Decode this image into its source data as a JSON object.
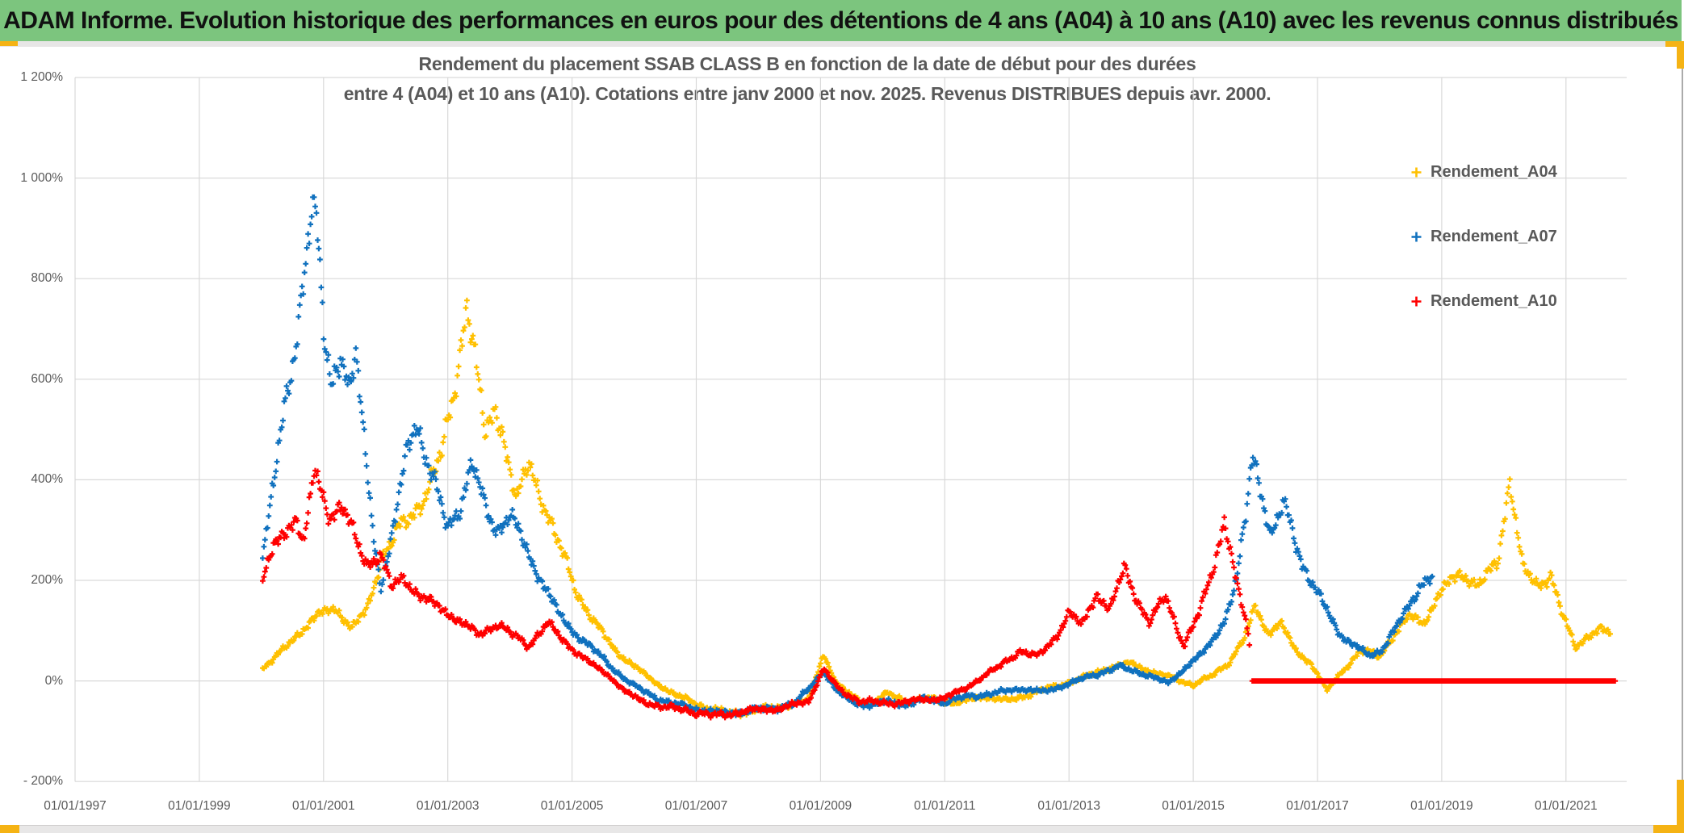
{
  "header": {
    "title": "ADAM Informe. Evolution historique des performances en euros pour des détentions de 4 ans (A04) à 10 ans (A10) avec les revenus connus distribués",
    "bg_color": "#7CC57E"
  },
  "chart": {
    "title_line1": "Rendement du placement SSAB CLASS B en fonction de la date de début pour des durées",
    "title_line2": "entre 4 (A04) et 10 ans (A10). Cotations entre janv 2000 et nov. 2025. Revenus DISTRIBUES depuis avr. 2000.",
    "y_axis": {
      "labels": [
        "1 200%",
        "1 000%",
        "800%",
        "600%",
        "400%",
        "200%",
        "0%",
        "- 200%"
      ],
      "min_pct": -200,
      "max_pct": 1200,
      "step_pct": 200
    },
    "x_axis": {
      "labels": [
        "01/01/1997",
        "01/01/1999",
        "01/01/2001",
        "01/01/2003",
        "01/01/2005",
        "01/01/2007",
        "01/01/2009",
        "01/01/2011",
        "01/01/2013",
        "01/01/2015",
        "01/01/2017",
        "01/01/2019",
        "01/01/2021"
      ],
      "first_year": 1997,
      "step_years": 2
    },
    "legend": [
      {
        "label": "Rendement_A04",
        "color": "#FFC000"
      },
      {
        "label": "Rendement_A07",
        "color": "#1071BE"
      },
      {
        "label": "Rendement_A10",
        "color": "#FF0000"
      }
    ],
    "gridline_color": "#D9D9D9"
  },
  "chart_data": {
    "type": "scatter",
    "marker": "plus",
    "x_unit": "decimal_year_start_date",
    "y_unit": "percent_return",
    "grid": true,
    "legend_position": "inside-top-right",
    "series": [
      {
        "name": "Rendement_A04",
        "color": "#FFC000",
        "vmax": 780,
        "keypoints": [
          [
            2000.02,
            25
          ],
          [
            2000.3,
            55
          ],
          [
            2000.6,
            95
          ],
          [
            2000.9,
            130
          ],
          [
            2001.2,
            145
          ],
          [
            2001.45,
            105
          ],
          [
            2001.7,
            140
          ],
          [
            2001.95,
            250
          ],
          [
            2002.2,
            300
          ],
          [
            2002.45,
            330
          ],
          [
            2002.7,
            390
          ],
          [
            2002.9,
            450
          ],
          [
            2003.1,
            570
          ],
          [
            2003.3,
            755
          ],
          [
            2003.45,
            640
          ],
          [
            2003.6,
            480
          ],
          [
            2003.75,
            545
          ],
          [
            2003.9,
            490
          ],
          [
            2004.1,
            355
          ],
          [
            2004.3,
            430
          ],
          [
            2004.5,
            370
          ],
          [
            2004.7,
            300
          ],
          [
            2004.9,
            235
          ],
          [
            2005.1,
            170
          ],
          [
            2005.4,
            110
          ],
          [
            2005.7,
            60
          ],
          [
            2006.0,
            30
          ],
          [
            2006.3,
            0
          ],
          [
            2006.7,
            -30
          ],
          [
            2007.1,
            -50
          ],
          [
            2007.5,
            -65
          ],
          [
            2008.0,
            -58
          ],
          [
            2008.4,
            -50
          ],
          [
            2008.8,
            -40
          ],
          [
            2009.05,
            55
          ],
          [
            2009.25,
            -5
          ],
          [
            2009.5,
            -30
          ],
          [
            2009.8,
            -45
          ],
          [
            2010.1,
            -25
          ],
          [
            2010.4,
            -40
          ],
          [
            2010.8,
            -35
          ],
          [
            2011.2,
            -45
          ],
          [
            2011.6,
            -30
          ],
          [
            2012.0,
            -40
          ],
          [
            2012.4,
            -25
          ],
          [
            2012.8,
            -10
          ],
          [
            2013.2,
            5
          ],
          [
            2013.6,
            25
          ],
          [
            2014.0,
            35
          ],
          [
            2014.4,
            15
          ],
          [
            2014.7,
            5
          ],
          [
            2015.0,
            -8
          ],
          [
            2015.3,
            10
          ],
          [
            2015.6,
            40
          ],
          [
            2015.85,
            90
          ],
          [
            2016.0,
            150
          ],
          [
            2016.2,
            95
          ],
          [
            2016.4,
            115
          ],
          [
            2016.65,
            60
          ],
          [
            2016.9,
            35
          ],
          [
            2017.15,
            -20
          ],
          [
            2017.4,
            20
          ],
          [
            2017.7,
            60
          ],
          [
            2018.0,
            50
          ],
          [
            2018.25,
            95
          ],
          [
            2018.5,
            130
          ],
          [
            2018.7,
            115
          ],
          [
            2019.0,
            180
          ],
          [
            2019.3,
            215
          ],
          [
            2019.6,
            190
          ],
          [
            2019.9,
            235
          ],
          [
            2020.1,
            405
          ],
          [
            2020.3,
            225
          ],
          [
            2020.55,
            185
          ],
          [
            2020.75,
            215
          ],
          [
            2020.95,
            130
          ],
          [
            2021.15,
            65
          ],
          [
            2021.35,
            90
          ],
          [
            2021.55,
            105
          ],
          [
            2021.72,
            90
          ]
        ]
      },
      {
        "name": "Rendement_A07",
        "color": "#1071BE",
        "vmax": 962,
        "keypoints": [
          [
            2000.02,
            250
          ],
          [
            2000.15,
            350
          ],
          [
            2000.3,
            480
          ],
          [
            2000.45,
            600
          ],
          [
            2000.6,
            720
          ],
          [
            2000.75,
            880
          ],
          [
            2000.83,
            950
          ],
          [
            2000.92,
            850
          ],
          [
            2001.0,
            700
          ],
          [
            2001.12,
            590
          ],
          [
            2001.27,
            660
          ],
          [
            2001.42,
            570
          ],
          [
            2001.52,
            645
          ],
          [
            2001.65,
            480
          ],
          [
            2001.8,
            300
          ],
          [
            2001.92,
            185
          ],
          [
            2002.05,
            255
          ],
          [
            2002.2,
            350
          ],
          [
            2002.35,
            470
          ],
          [
            2002.5,
            520
          ],
          [
            2002.65,
            440
          ],
          [
            2002.8,
            385
          ],
          [
            2003.0,
            305
          ],
          [
            2003.2,
            350
          ],
          [
            2003.4,
            430
          ],
          [
            2003.6,
            345
          ],
          [
            2003.8,
            300
          ],
          [
            2004.0,
            330
          ],
          [
            2004.2,
            280
          ],
          [
            2004.4,
            225
          ],
          [
            2004.6,
            180
          ],
          [
            2004.8,
            130
          ],
          [
            2005.0,
            100
          ],
          [
            2005.2,
            80
          ],
          [
            2005.45,
            50
          ],
          [
            2005.7,
            20
          ],
          [
            2006.0,
            -10
          ],
          [
            2006.3,
            -30
          ],
          [
            2006.6,
            -45
          ],
          [
            2007.0,
            -55
          ],
          [
            2007.4,
            -65
          ],
          [
            2007.8,
            -60
          ],
          [
            2008.2,
            -55
          ],
          [
            2008.6,
            -45
          ],
          [
            2009.05,
            20
          ],
          [
            2009.25,
            -20
          ],
          [
            2009.5,
            -40
          ],
          [
            2009.8,
            -50
          ],
          [
            2010.1,
            -40
          ],
          [
            2010.4,
            -48
          ],
          [
            2010.7,
            -35
          ],
          [
            2011.0,
            -42
          ],
          [
            2011.4,
            -30
          ],
          [
            2011.8,
            -25
          ],
          [
            2012.2,
            -15
          ],
          [
            2012.6,
            -22
          ],
          [
            2013.0,
            -5
          ],
          [
            2013.4,
            12
          ],
          [
            2013.8,
            28
          ],
          [
            2014.2,
            15
          ],
          [
            2014.6,
            -5
          ],
          [
            2014.9,
            30
          ],
          [
            2015.2,
            60
          ],
          [
            2015.5,
            120
          ],
          [
            2015.7,
            200
          ],
          [
            2015.85,
            330
          ],
          [
            2015.95,
            450
          ],
          [
            2016.1,
            380
          ],
          [
            2016.25,
            285
          ],
          [
            2016.45,
            350
          ],
          [
            2016.6,
            300
          ],
          [
            2016.75,
            235
          ],
          [
            2016.95,
            185
          ],
          [
            2017.15,
            140
          ],
          [
            2017.35,
            95
          ],
          [
            2017.6,
            70
          ],
          [
            2017.85,
            48
          ],
          [
            2018.05,
            65
          ],
          [
            2018.25,
            105
          ],
          [
            2018.45,
            140
          ],
          [
            2018.65,
            190
          ],
          [
            2018.85,
            215
          ]
        ]
      },
      {
        "name": "Rendement_A10",
        "color": "#FF0000",
        "vmax": 425,
        "keypoints": [
          [
            2000.02,
            200
          ],
          [
            2000.2,
            265
          ],
          [
            2000.4,
            300
          ],
          [
            2000.55,
            330
          ],
          [
            2000.68,
            270
          ],
          [
            2000.85,
            415
          ],
          [
            2000.95,
            380
          ],
          [
            2001.1,
            330
          ],
          [
            2001.3,
            350
          ],
          [
            2001.5,
            285
          ],
          [
            2001.7,
            230
          ],
          [
            2001.9,
            255
          ],
          [
            2002.1,
            185
          ],
          [
            2002.3,
            205
          ],
          [
            2002.5,
            175
          ],
          [
            2002.8,
            150
          ],
          [
            2003.0,
            135
          ],
          [
            2003.25,
            115
          ],
          [
            2003.5,
            90
          ],
          [
            2003.8,
            115
          ],
          [
            2004.0,
            95
          ],
          [
            2004.3,
            70
          ],
          [
            2004.6,
            115
          ],
          [
            2004.9,
            75
          ],
          [
            2005.1,
            55
          ],
          [
            2005.35,
            30
          ],
          [
            2005.6,
            10
          ],
          [
            2005.85,
            -20
          ],
          [
            2006.1,
            -40
          ],
          [
            2006.5,
            -52
          ],
          [
            2007.0,
            -62
          ],
          [
            2007.3,
            -70
          ],
          [
            2007.8,
            -60
          ],
          [
            2008.3,
            -55
          ],
          [
            2008.8,
            -42
          ],
          [
            2009.05,
            25
          ],
          [
            2009.3,
            -18
          ],
          [
            2009.6,
            -38
          ],
          [
            2010.0,
            -45
          ],
          [
            2010.5,
            -40
          ],
          [
            2011.0,
            -33
          ],
          [
            2011.3,
            -18
          ],
          [
            2011.6,
            8
          ],
          [
            2011.9,
            30
          ],
          [
            2012.2,
            60
          ],
          [
            2012.5,
            48
          ],
          [
            2012.8,
            90
          ],
          [
            2013.0,
            135
          ],
          [
            2013.2,
            110
          ],
          [
            2013.45,
            175
          ],
          [
            2013.65,
            140
          ],
          [
            2013.9,
            225
          ],
          [
            2014.1,
            160
          ],
          [
            2014.3,
            115
          ],
          [
            2014.55,
            170
          ],
          [
            2014.85,
            70
          ],
          [
            2015.1,
            135
          ],
          [
            2015.35,
            240
          ],
          [
            2015.5,
            320
          ],
          [
            2015.7,
            190
          ],
          [
            2015.88,
            100
          ],
          [
            2015.92,
            60
          ]
        ]
      }
    ],
    "red_flat_zero_segment": {
      "series": "Rendement_A10",
      "from": 2015.95,
      "to": 2021.8,
      "value_pct": 0,
      "note": "solid flat red line at 0% for start dates whose 10-year horizon exceeds nov. 2025"
    },
    "y_range_pct": [
      -200,
      1200
    ],
    "observed_extremes": {
      "A07_peak_pct": 950,
      "A07_peak_date": 2000.83,
      "A04_peak_pct": 755,
      "A04_peak_date": 2003.3,
      "A10_peak_pct": 415,
      "A10_peak_date": 2000.85,
      "A04_late_spike_pct": 405,
      "A04_late_spike_date": 2020.1,
      "A07_late_spike_pct": 450,
      "A07_late_spike_date": 2015.95,
      "common_trough_pct": -70,
      "trough_period": "2006-2008"
    }
  }
}
